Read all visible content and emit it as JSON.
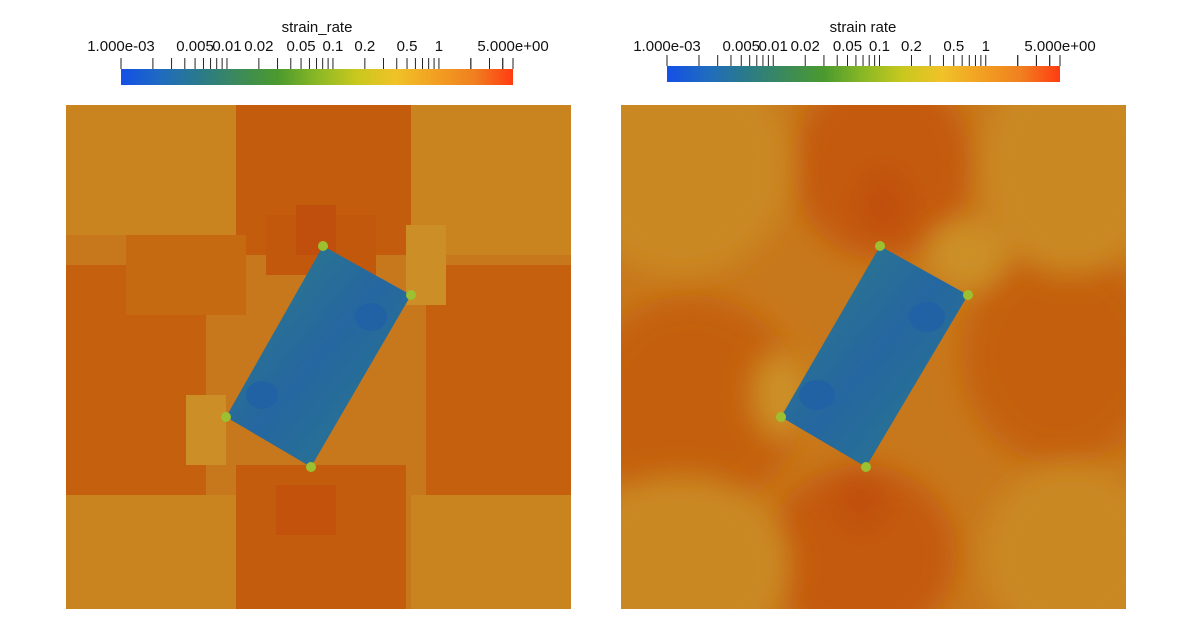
{
  "panels": [
    {
      "id": "left",
      "colorbar": {
        "title": "strain_rate",
        "min_label": "1.000e-03",
        "max_label": "5.000e+00",
        "tick_labels": [
          "0.005",
          "0.01",
          "0.02",
          "0.05",
          "0.1",
          "0.2",
          "0.5",
          "1"
        ],
        "scale": "log",
        "range": [
          0.001,
          5
        ]
      },
      "render_style": "blocky"
    },
    {
      "id": "right",
      "colorbar": {
        "title": "strain rate",
        "min_label": "1.000e-03",
        "max_label": "5.000e+00",
        "tick_labels": [
          "0.005",
          "0.01",
          "0.02",
          "0.05",
          "0.1",
          "0.2",
          "0.5",
          "1"
        ],
        "scale": "log",
        "range": [
          0.001,
          5
        ]
      },
      "render_style": "smooth"
    }
  ],
  "colors": {
    "colormap": [
      "#1450e6",
      "#1f6bc0",
      "#2a7a8a",
      "#3c8a5a",
      "#4b9a2e",
      "#8ab825",
      "#c8c81e",
      "#f0c228",
      "#f2a022",
      "#f08020",
      "#ff3c12"
    ],
    "field_background": "#c67218",
    "field_dark": "#c2580c",
    "field_light": "#cc8a22",
    "inclusion": "#2a6f8e",
    "inclusion_dark": "#2060a0"
  }
}
